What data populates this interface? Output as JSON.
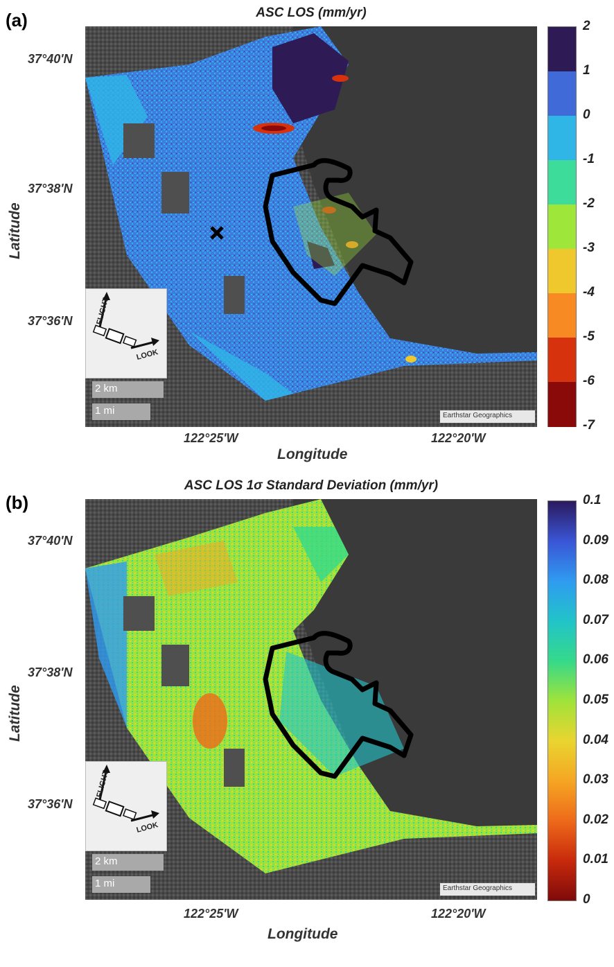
{
  "panels": [
    {
      "label": "(a)",
      "title": "ASC LOS (mm/yr)",
      "lat_ticks": [
        "37°40'N",
        "37°38'N",
        "37°36'N"
      ],
      "lon_ticks": [
        "122°25'W",
        "122°20'W"
      ],
      "xlabel": "Longitude",
      "ylabel": "Latitude",
      "colorbar": {
        "ticks": [
          "2",
          "1",
          "0",
          "-1",
          "-2",
          "-3",
          "-4",
          "-5",
          "-6",
          "-7"
        ],
        "colors": [
          "#2e1a55",
          "#3f6ad8",
          "#2fb5e6",
          "#3ddc9a",
          "#9ee63a",
          "#efc82e",
          "#f78a23",
          "#d6320e",
          "#8a0a0a"
        ]
      },
      "scale_km": "2 km",
      "scale_mi": "1 mi",
      "attribution": "Earthstar Geographics",
      "inset": {
        "flight": "FLIGHT",
        "look": "LOOK"
      }
    },
    {
      "label": "(b)",
      "title": "ASC LOS 1σ Standard Deviation (mm/yr)",
      "lat_ticks": [
        "37°40'N",
        "37°38'N",
        "37°36'N"
      ],
      "lon_ticks": [
        "122°25'W",
        "122°20'W"
      ],
      "xlabel": "Longitude",
      "ylabel": "Latitude",
      "colorbar": {
        "ticks": [
          "0.1",
          "0.09",
          "0.08",
          "0.07",
          "0.06",
          "0.05",
          "0.04",
          "0.03",
          "0.02",
          "0.01",
          "0"
        ],
        "gradient": [
          "#2b1a5e",
          "#3a55d6",
          "#2f9bf0",
          "#22c4c9",
          "#35d98a",
          "#9fe33a",
          "#e9d530",
          "#f5a623",
          "#ee6a1a",
          "#c82a0c",
          "#7f0a0a"
        ]
      },
      "scale_km": "2 km",
      "scale_mi": "1 mi",
      "attribution": "Earthstar Geographics",
      "inset": {
        "flight": "FLIGHT",
        "look": "LOOK"
      }
    }
  ]
}
